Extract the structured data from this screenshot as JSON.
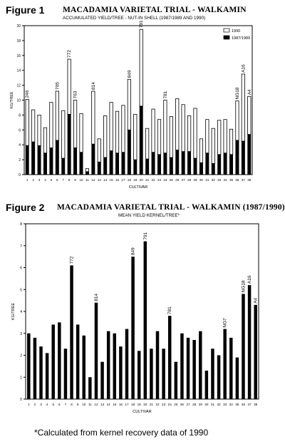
{
  "figure1": {
    "label": "Figure 1",
    "title": "MACADAMIA VARIETAL TRIAL - WALKAMIN",
    "subtitle": "ACCUMULATED YIELD/TREE - NUT-IN SHELL (1987/1989 AND 1990)"
  },
  "figure2": {
    "label": "Figure 2",
    "title": "MACADAMIA VARIETAL TRIAL - WALKAMIN (1987/1990)",
    "subtitle": "MEAN YIELD KERNEL/TREE*"
  },
  "footnote": "*Calculated from kernel recovery data of 1990",
  "chart_data": [
    {
      "type": "bar",
      "stacked": true,
      "xlabel": "CULTIVAR",
      "ylabel": "KG/TREE",
      "ylim": [
        0,
        20
      ],
      "yticks": [
        0,
        2,
        4,
        6,
        8,
        10,
        12,
        14,
        16,
        18,
        20
      ],
      "legend_position": "top-right",
      "categories": [
        "1",
        "2",
        "3",
        "4",
        "5",
        "6",
        "7",
        "8",
        "9",
        "10",
        "11",
        "12",
        "13",
        "14",
        "15",
        "16",
        "17",
        "18",
        "19",
        "20",
        "21",
        "22",
        "23",
        "24",
        "25",
        "26",
        "27",
        "28",
        "29",
        "30",
        "31",
        "32",
        "33",
        "34",
        "35",
        "36",
        "37",
        "38"
      ],
      "series": [
        {
          "name": "1987/1989",
          "color": "#000000",
          "values": [
            3.9,
            4.4,
            3.9,
            2.9,
            3.6,
            4.6,
            2.2,
            8.1,
            3.6,
            3.0,
            0.4,
            4.1,
            1.7,
            2.3,
            3.2,
            2.9,
            3.0,
            6.0,
            2.0,
            9.2,
            2.1,
            3.0,
            2.7,
            2.9,
            2.3,
            3.3,
            3.1,
            3.1,
            2.2,
            1.6,
            2.9,
            1.5,
            2.7,
            2.9,
            2.7,
            4.6,
            4.5,
            5.4
          ]
        },
        {
          "name": "1990",
          "color": "#ffffff",
          "values": [
            6.2,
            4.3,
            4.1,
            3.4,
            6.1,
            6.6,
            6.4,
            7.4,
            6.4,
            5.2,
            0.4,
            7.1,
            3.1,
            5.6,
            6.5,
            5.6,
            6.3,
            6.8,
            6.1,
            10.3,
            4.1,
            5.8,
            4.7,
            7.1,
            5.5,
            6.9,
            6.3,
            4.8,
            6.7,
            3.2,
            4.5,
            4.7,
            4.6,
            4.5,
            3.4,
            5.3,
            9.0,
            5.1
          ]
        }
      ],
      "annotations": [
        {
          "category": "1",
          "text": "246"
        },
        {
          "category": "6",
          "text": "705"
        },
        {
          "category": "8",
          "text": "772"
        },
        {
          "category": "9",
          "text": "763"
        },
        {
          "category": "12",
          "text": "814"
        },
        {
          "category": "18",
          "text": "849"
        },
        {
          "category": "20",
          "text": "791"
        },
        {
          "category": "24",
          "text": "781"
        },
        {
          "category": "36",
          "text": "NG18"
        },
        {
          "category": "37",
          "text": "A16"
        },
        {
          "category": "38",
          "text": "A4"
        }
      ]
    },
    {
      "type": "bar",
      "xlabel": "CULTIVAR",
      "ylabel": "KG/TREE",
      "ylim": [
        0,
        8
      ],
      "yticks": [
        0,
        1,
        2,
        3,
        4,
        5,
        6,
        7,
        8
      ],
      "categories": [
        "1",
        "2",
        "3",
        "4",
        "5",
        "6",
        "7",
        "8",
        "9",
        "10",
        "11",
        "12",
        "13",
        "14",
        "15",
        "16",
        "17",
        "18",
        "19",
        "20",
        "21",
        "22",
        "23",
        "24",
        "25",
        "26",
        "27",
        "28",
        "29",
        "30",
        "31",
        "32",
        "33",
        "34",
        "35",
        "36",
        "37",
        "38"
      ],
      "series": [
        {
          "color": "#000000",
          "values": [
            3.0,
            2.8,
            2.4,
            2.1,
            3.4,
            3.5,
            2.3,
            6.1,
            3.4,
            2.9,
            1.0,
            4.4,
            1.7,
            3.1,
            3.0,
            2.4,
            3.2,
            6.5,
            2.2,
            7.2,
            2.3,
            3.1,
            2.3,
            3.8,
            1.7,
            3.0,
            2.8,
            2.7,
            3.1,
            1.3,
            2.3,
            2.0,
            3.2,
            2.8,
            1.9,
            4.8,
            5.2,
            4.3
          ]
        }
      ],
      "annotations": [
        {
          "category": "8",
          "text": "772"
        },
        {
          "category": "12",
          "text": "814"
        },
        {
          "category": "18",
          "text": "849"
        },
        {
          "category": "20",
          "text": "791"
        },
        {
          "category": "24",
          "text": "781"
        },
        {
          "category": "33",
          "text": "NG7"
        },
        {
          "category": "36",
          "text": "NG18"
        },
        {
          "category": "37",
          "text": "A16"
        },
        {
          "category": "38",
          "text": "A4"
        }
      ]
    }
  ]
}
